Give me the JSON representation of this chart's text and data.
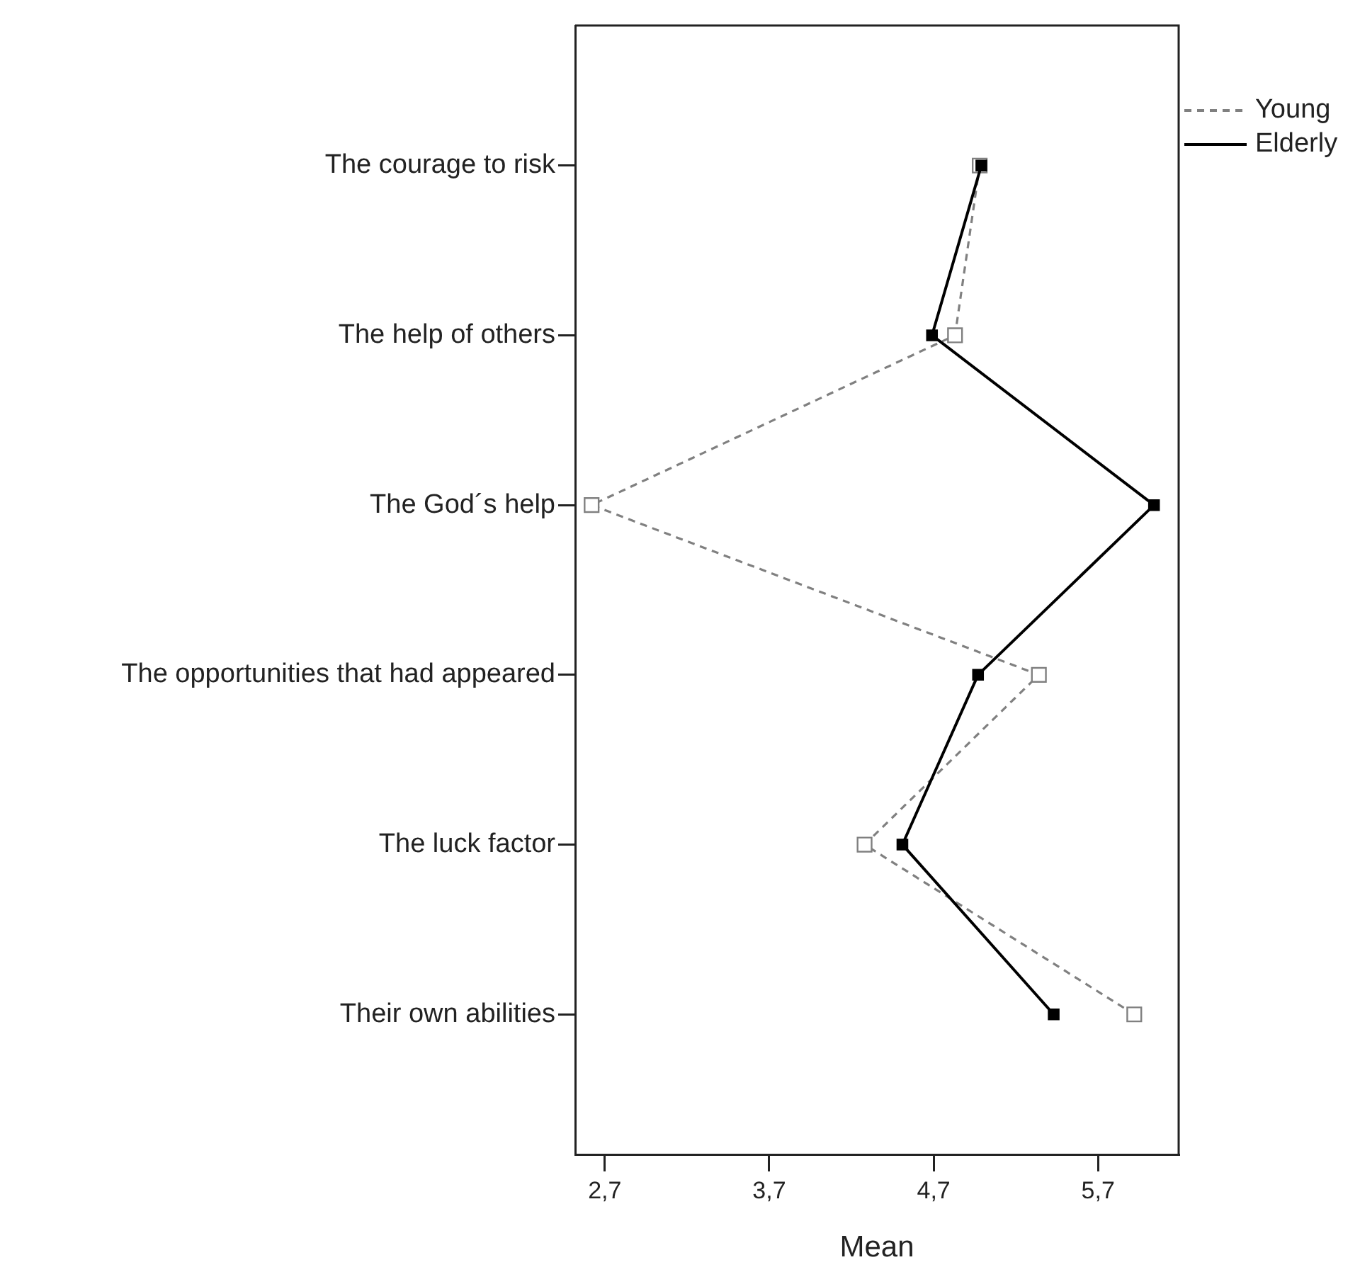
{
  "chart_data": {
    "type": "line",
    "orientation": "horizontal",
    "xlabel": "Mean",
    "categories": [
      "The courage to risk",
      "The help of others",
      "The God´s help",
      "The opportunities that had appeared",
      "The luck factor",
      "Their own abilities"
    ],
    "series": [
      {
        "name": "Young",
        "color": "#808080",
        "line_style": "dashed",
        "marker": "square",
        "values": [
          4.98,
          4.83,
          2.62,
          5.34,
          4.28,
          5.92
        ]
      },
      {
        "name": "Elderly",
        "color": "#000000",
        "line_style": "solid",
        "marker": "square",
        "values": [
          4.99,
          4.69,
          6.04,
          4.97,
          4.51,
          5.43
        ]
      }
    ],
    "xlim": [
      2.52,
      6.19
    ],
    "xticks": [
      {
        "value": 2.7,
        "label": "2,7"
      },
      {
        "value": 3.7,
        "label": "3,7"
      },
      {
        "value": 4.7,
        "label": "4,7"
      },
      {
        "value": 5.7,
        "label": "5,7"
      }
    ],
    "grid": false,
    "legend": "top right"
  }
}
